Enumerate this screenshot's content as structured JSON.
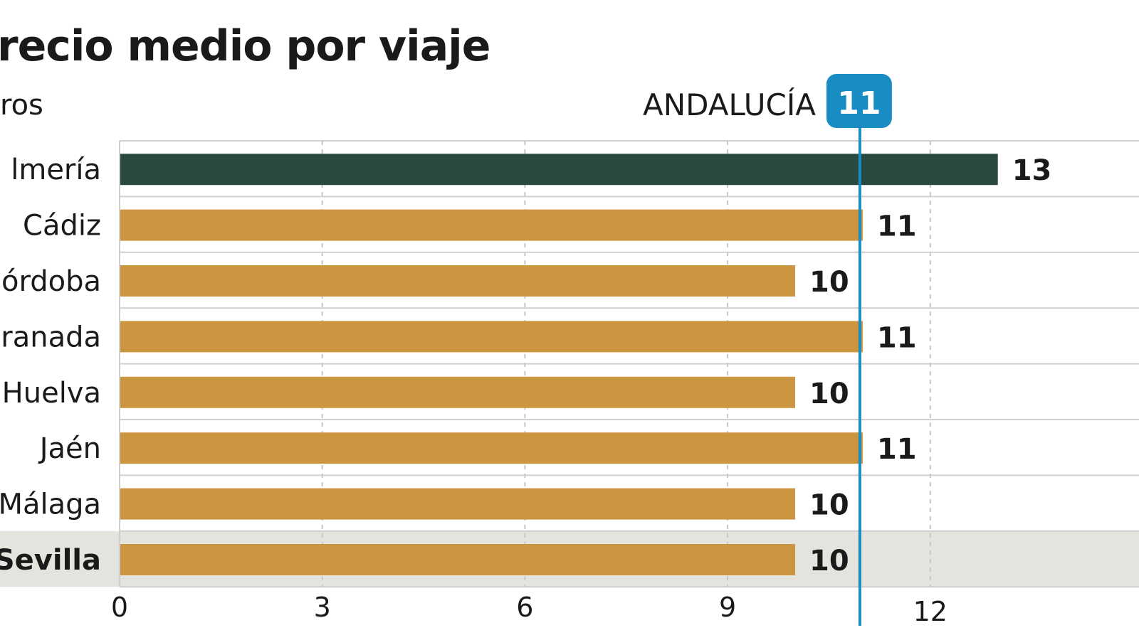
{
  "chart_data": {
    "type": "bar",
    "orientation": "horizontal",
    "title": "recio medio por viaje",
    "unit_label": "ros",
    "categories": [
      "lmería",
      "Cádiz",
      "órdoba",
      "ranada",
      "Huelva",
      "Jaén",
      "Málaga",
      "Sevilla"
    ],
    "values": [
      13,
      11,
      10,
      11,
      10,
      11,
      10,
      10
    ],
    "value_labels": [
      "13",
      "11",
      "10",
      "11",
      "10",
      "11",
      "10",
      "10"
    ],
    "highlighted_category": "Sevilla",
    "emphasized_bar": "lmería",
    "xlim": [
      0,
      14.5
    ],
    "xticks": [
      0,
      3,
      6,
      9,
      12
    ],
    "xtick_labels": [
      "0",
      "3",
      "6",
      "9",
      "12"
    ],
    "grid": "vertical dashed",
    "reference_line": {
      "label": "ANDALUCÍA",
      "value": 11,
      "value_label": "11"
    },
    "colors": {
      "bar": "#cc9640",
      "bar_emphasis": "#2a4a40",
      "reference": "#1a8cc4",
      "highlight_row": "#e4e4de",
      "grid": "#c8c8c8"
    }
  }
}
